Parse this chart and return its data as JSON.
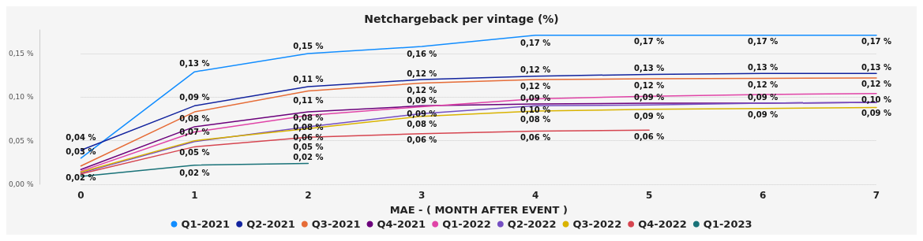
{
  "chart_data": {
    "type": "line",
    "title": "Netchargeback per vintage (%)",
    "xlabel": "MAE - ( MONTH AFTER EVENT )",
    "categories": [
      "0",
      "1",
      "2",
      "3",
      "4",
      "5",
      "6",
      "7"
    ],
    "ylim": [
      0,
      0.177
    ],
    "yticks": [
      {
        "value": 0,
        "label": "0,00 %"
      },
      {
        "value": 0.05,
        "label": "0,05 %"
      },
      {
        "value": 0.1,
        "label": "0,10 %"
      },
      {
        "value": 0.15,
        "label": "0,15 %"
      }
    ],
    "grid": "y",
    "legend": "bottom",
    "marker": "none",
    "series": [
      {
        "name": "Q1-2021",
        "color": "#118dff",
        "values": [
          0.03,
          0.129,
          0.15,
          0.158,
          0.171,
          0.171,
          0.171,
          0.171
        ],
        "value_labels": [
          "0,03 %",
          "0,13 %",
          "0,15 %",
          "0,16 %",
          "0,17 %",
          "0,17 %",
          "0,17 %",
          "0,17 %"
        ]
      },
      {
        "name": "Q2-2021",
        "color": "#12239e",
        "values": [
          0.039,
          0.09,
          0.112,
          0.12,
          0.124,
          0.126,
          0.127,
          0.127
        ],
        "value_labels": [
          "0,04 %",
          "0,09 %",
          "0,11 %",
          "0,12 %",
          "0,12 %",
          "0,13 %",
          "0,13 %",
          "0,13 %"
        ]
      },
      {
        "name": "Q3-2021",
        "color": "#e66c37",
        "values": [
          0.021,
          0.083,
          0.107,
          0.116,
          0.12,
          0.121,
          0.1215,
          0.122
        ],
        "value_labels": [
          "0,02 %",
          "0,08 %",
          "0,11 %",
          "0,12 %",
          "0,12 %",
          "0,12 %",
          "0,12 %",
          "0,12 %"
        ]
      },
      {
        "name": "Q4-2021",
        "color": "#6b007b",
        "values": [
          0.017,
          0.066,
          0.083,
          0.09,
          0.092,
          0.093,
          0.093,
          0.094
        ],
        "value_labels": [
          null,
          "0,07 %",
          "0,08 %",
          "0,09 %",
          "0,09 %",
          "0,09 %",
          "0,09 %",
          "0,09 %"
        ]
      },
      {
        "name": "Q1-2022",
        "color": "#e044a7",
        "values": [
          0.015,
          0.06,
          0.079,
          0.089,
          0.098,
          0.101,
          0.103,
          0.104
        ],
        "value_labels": [
          null,
          null,
          "0,08 %",
          "0,09 %",
          "0,10 %",
          null,
          null,
          "0,10 %"
        ]
      },
      {
        "name": "Q2-2022",
        "color": "#744ec2",
        "values": [
          0.013,
          0.049,
          0.066,
          0.081,
          0.09,
          0.091,
          0.093,
          0.094
        ],
        "value_labels": [
          null,
          null,
          null,
          "0,08 %",
          null,
          null,
          null,
          null
        ]
      },
      {
        "name": "Q3-2022",
        "color": "#d9b300",
        "values": [
          0.014,
          0.05,
          0.064,
          0.078,
          0.084,
          0.086,
          0.087,
          0.088
        ],
        "value_labels": [
          null,
          "0,05 %",
          "0,06 %",
          null,
          "0,08 %",
          "0,09 %",
          "0,09 %",
          null
        ]
      },
      {
        "name": "Q4-2022",
        "color": "#d64550",
        "values": [
          0.012,
          0.043,
          0.054,
          0.058,
          0.061,
          0.062,
          null,
          null
        ],
        "value_labels": [
          null,
          null,
          "0,05 %",
          "0,06 %",
          "0,06 %",
          "0,06 %",
          null,
          null
        ]
      },
      {
        "name": "Q1-2023",
        "color": "#197278",
        "values": [
          0.009,
          0.022,
          0.024,
          null,
          null,
          null,
          null,
          null
        ],
        "value_labels": [
          null,
          "0,02 %",
          "0,02 %",
          null,
          null,
          null,
          null,
          null
        ]
      }
    ]
  }
}
